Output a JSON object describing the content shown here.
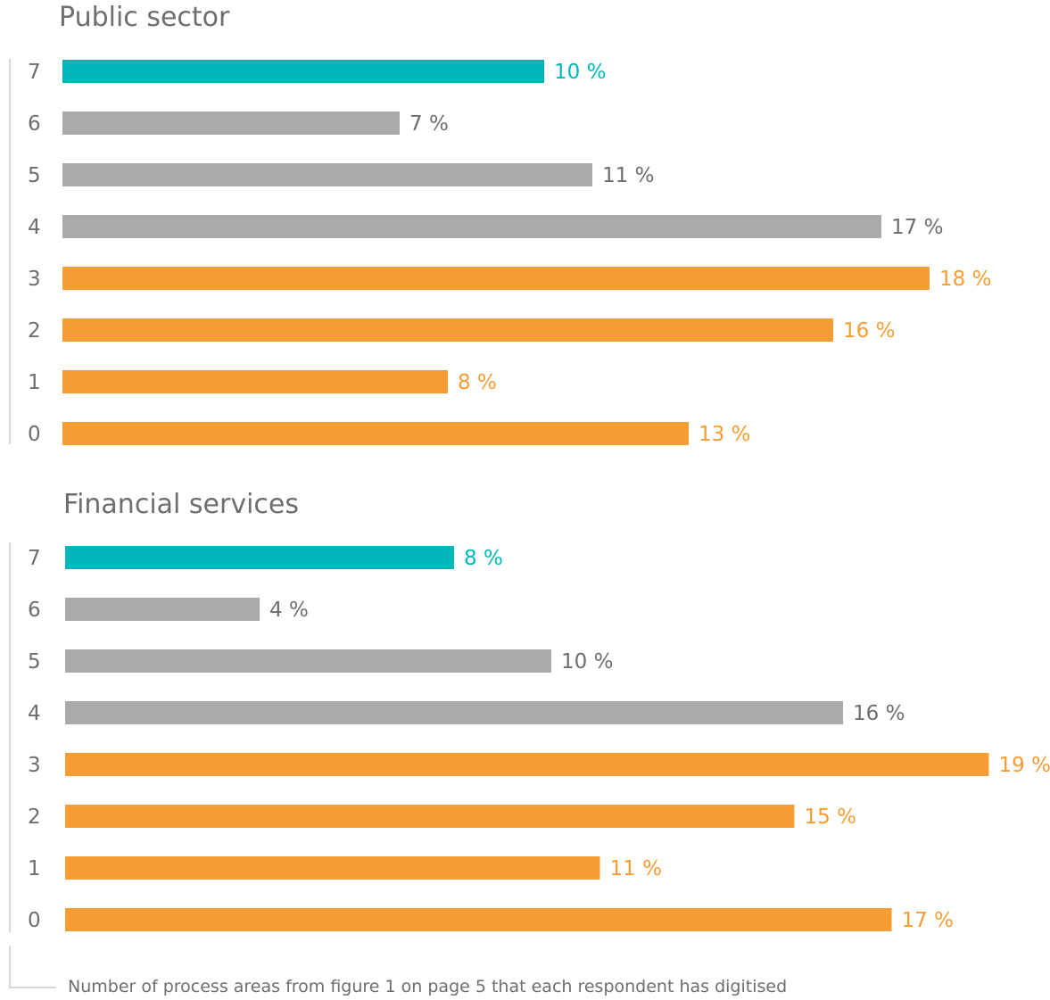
{
  "colors": {
    "highlight": "#00b8bb",
    "neutral": "#a8aaab",
    "accent": "#f59d33",
    "neutral_text": "#6d6e71"
  },
  "footer": {
    "note": "Number of process areas from figure 1 on page 5 that each respondent has digitised"
  },
  "chart_data": [
    {
      "type": "bar",
      "orientation": "horizontal",
      "title": "Public sector",
      "categories": [
        "7",
        "6",
        "5",
        "4",
        "3",
        "2",
        "1",
        "0"
      ],
      "values": [
        10,
        7,
        11,
        17,
        18,
        16,
        8,
        13
      ],
      "labels": [
        "10 %",
        "7 %",
        "11 %",
        "17 %",
        "18 %",
        "16 %",
        "8 %",
        "13 %"
      ],
      "bar_colors": [
        "highlight",
        "neutral",
        "neutral",
        "neutral",
        "accent",
        "accent",
        "accent",
        "accent"
      ],
      "unit": "%",
      "grid": false,
      "legend": "none"
    },
    {
      "type": "bar",
      "orientation": "horizontal",
      "title": "Financial services",
      "categories": [
        "7",
        "6",
        "5",
        "4",
        "3",
        "2",
        "1",
        "0"
      ],
      "values": [
        8,
        4,
        10,
        16,
        19,
        15,
        11,
        17
      ],
      "labels": [
        "8 %",
        "4 %",
        "10 %",
        "16 %",
        "19 %",
        "15 %",
        "11 %",
        "17 %"
      ],
      "bar_colors": [
        "highlight",
        "neutral",
        "neutral",
        "neutral",
        "accent",
        "accent",
        "accent",
        "accent"
      ],
      "unit": "%",
      "grid": false,
      "legend": "none"
    }
  ]
}
